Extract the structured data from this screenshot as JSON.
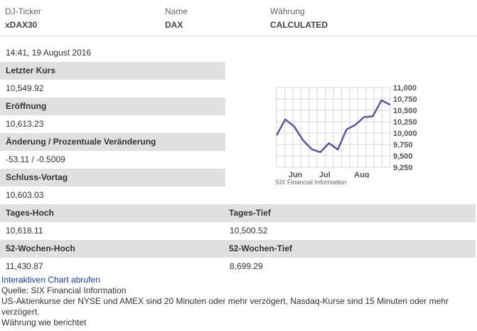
{
  "header": {
    "ticker_label": "DJ-Ticker",
    "ticker_value": "xDAX30",
    "name_label": "Name",
    "name_value": "DAX",
    "currency_label": "Währung",
    "currency_value": "CALCULATED"
  },
  "timestamp": "14:41, 19 August 2016",
  "fields": {
    "last_label": "Letzter Kurs",
    "last_value": "10,549.92",
    "open_label": "Eröffnung",
    "open_value": "10,613.23",
    "change_label": "Änderung / Prozentuale Veränderung",
    "change_value": "-53.11 / -0.5009",
    "prev_close_label": "Schluss-Vortag",
    "prev_close_value": "10,603.03",
    "day_high_label": "Tages-Hoch",
    "day_high_value": "10,618.11",
    "day_low_label": "Tages-Tief",
    "day_low_value": "10,500.52",
    "wk52_high_label": "52-Wochen-Hoch",
    "wk52_high_value": "11,430.87",
    "wk52_low_label": "52-Wochen-Tief",
    "wk52_low_value": "8,699.29"
  },
  "chart_data": {
    "type": "line",
    "x": [
      0,
      1,
      2,
      3,
      4,
      5,
      6,
      7,
      8,
      9,
      10,
      11,
      12,
      13
    ],
    "values": [
      9950,
      10300,
      10150,
      9850,
      9650,
      9580,
      9780,
      9640,
      10080,
      10180,
      10350,
      10370,
      10720,
      10620
    ],
    "ylim": [
      9250,
      11000
    ],
    "yticks": [
      "11,000",
      "10,750",
      "10,500",
      "10,250",
      "10,000",
      "9,750",
      "9,500",
      "9,250"
    ],
    "xticks": [
      "Jun",
      "Jul",
      "Aug"
    ],
    "source": "SIX Financial Information",
    "grid": true,
    "line_color": "#5a5a9a"
  },
  "footer": {
    "chart_link": "Interaktiven Chart abrufen",
    "source_line": "Quelle: SIX Financial Information",
    "delay_line": "US-Aktienkurse der NYSE und AMEX sind 20 Minuten oder mehr verzögert, Nasdaq-Kurse sind 15 Minuten oder mehr verzögert.",
    "currency_line": "Währung wie berichtet"
  }
}
